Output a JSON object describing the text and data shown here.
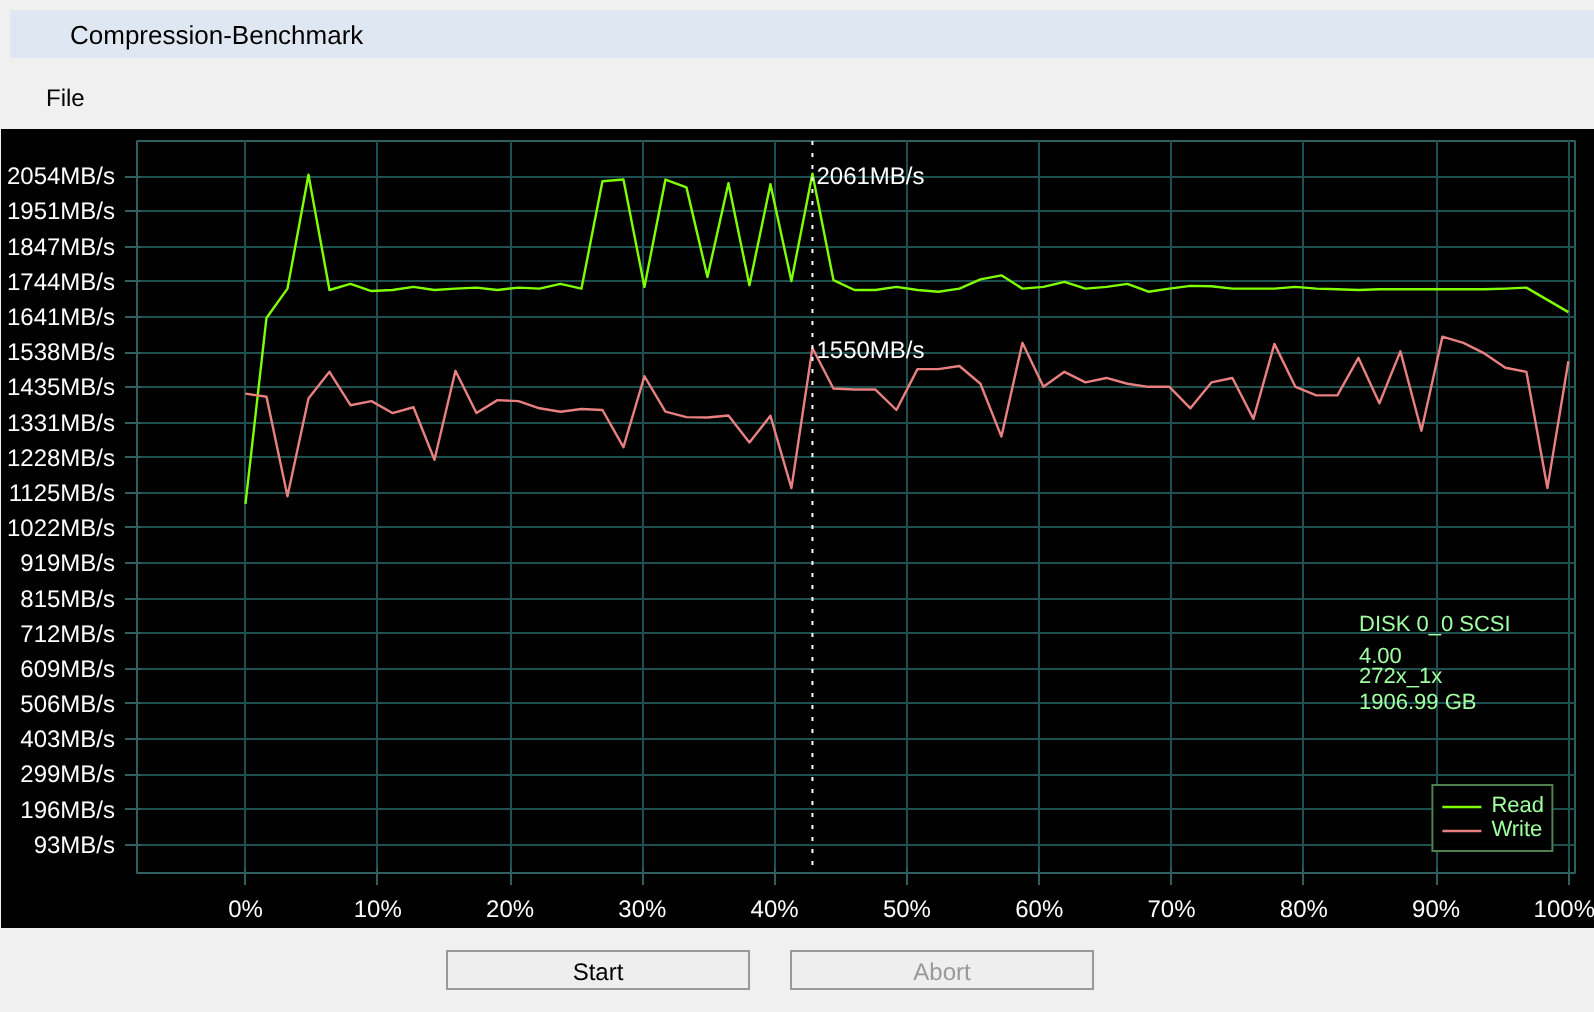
{
  "chart_data": {
    "type": "line",
    "title": "Compression-Benchmark",
    "x": [
      0,
      1.587,
      3.175,
      4.762,
      6.349,
      7.937,
      9.524,
      11.111,
      12.698,
      14.286,
      15.873,
      17.46,
      19.048,
      20.635,
      22.222,
      23.81,
      25.397,
      26.984,
      28.571,
      30.159,
      31.746,
      33.333,
      34.921,
      36.508,
      38.095,
      39.683,
      41.27,
      42.857,
      44.444,
      46.032,
      47.619,
      49.206,
      50.794,
      52.381,
      53.968,
      55.556,
      57.143,
      58.73,
      60.317,
      61.905,
      63.492,
      65.079,
      66.667,
      68.254,
      69.841,
      71.429,
      73.016,
      74.603,
      76.19,
      77.778,
      79.365,
      80.952,
      82.54,
      84.127,
      85.714,
      87.302,
      88.889,
      90.476,
      92.063,
      93.651,
      95.238,
      96.825,
      98.413,
      100
    ],
    "series": [
      {
        "name": "Read",
        "color": "#80ff00",
        "values": [
          1093,
          1638,
          1724,
          2058,
          1720,
          1738,
          1717,
          1720,
          1729,
          1720,
          1724,
          1727,
          1720,
          1727,
          1724,
          1738,
          1724,
          2039,
          2044,
          1729,
          2044,
          2021,
          1758,
          2033,
          1734,
          2030,
          1746,
          2061,
          1749,
          1720,
          1720,
          1729,
          1720,
          1715,
          1724,
          1751,
          1763,
          1724,
          1729,
          1744,
          1724,
          1729,
          1738,
          1715,
          1724,
          1732,
          1731,
          1724,
          1724,
          1724,
          1729,
          1724,
          1722,
          1720,
          1722,
          1722,
          1722,
          1722,
          1722,
          1722,
          1724,
          1727,
          1691,
          1655
        ]
      },
      {
        "name": "Write",
        "color": "#e88080",
        "values": [
          1416,
          1407,
          1115,
          1402,
          1480,
          1382,
          1394,
          1359,
          1376,
          1222,
          1483,
          1359,
          1397,
          1394,
          1373,
          1363,
          1371,
          1368,
          1259,
          1467,
          1363,
          1347,
          1346,
          1352,
          1273,
          1351,
          1139,
          1550,
          1431,
          1428,
          1428,
          1368,
          1488,
          1488,
          1497,
          1445,
          1290,
          1565,
          1436,
          1480,
          1449,
          1462,
          1445,
          1436,
          1436,
          1373,
          1449,
          1462,
          1342,
          1562,
          1436,
          1411,
          1411,
          1521,
          1388,
          1540,
          1307,
          1583,
          1565,
          1534,
          1492,
          1480,
          1139,
          1511
        ]
      }
    ],
    "xlim": [
      -8.2,
      100.5
    ],
    "ylim": [
      10,
      2157
    ],
    "xticks": [
      {
        "value": 0,
        "label": "0%"
      },
      {
        "value": 10,
        "label": "10%"
      },
      {
        "value": 20,
        "label": "20%"
      },
      {
        "value": 30,
        "label": "30%"
      },
      {
        "value": 40,
        "label": "40%"
      },
      {
        "value": 50,
        "label": "50%"
      },
      {
        "value": 60,
        "label": "60%"
      },
      {
        "value": 70,
        "label": "70%"
      },
      {
        "value": 80,
        "label": "80%"
      },
      {
        "value": 90,
        "label": "90%"
      },
      {
        "value": 100,
        "label": "100%"
      }
    ],
    "yticks": [
      {
        "value": 2054,
        "label": "2054MB/s"
      },
      {
        "value": 1951,
        "label": "1951MB/s"
      },
      {
        "value": 1847,
        "label": "1847MB/s"
      },
      {
        "value": 1744,
        "label": "1744MB/s"
      },
      {
        "value": 1641,
        "label": "1641MB/s"
      },
      {
        "value": 1538,
        "label": "1538MB/s"
      },
      {
        "value": 1435,
        "label": "1435MB/s"
      },
      {
        "value": 1331,
        "label": "1331MB/s"
      },
      {
        "value": 1228,
        "label": "1228MB/s"
      },
      {
        "value": 1125,
        "label": "1125MB/s"
      },
      {
        "value": 1022,
        "label": "1022MB/s"
      },
      {
        "value": 919,
        "label": "919MB/s"
      },
      {
        "value": 815,
        "label": "815MB/s"
      },
      {
        "value": 712,
        "label": "712MB/s"
      },
      {
        "value": 609,
        "label": "609MB/s"
      },
      {
        "value": 506,
        "label": "506MB/s"
      },
      {
        "value": 403,
        "label": "403MB/s"
      },
      {
        "value": 299,
        "label": "299MB/s"
      },
      {
        "value": 196,
        "label": "196MB/s"
      },
      {
        "value": 93,
        "label": "93MB/s"
      }
    ],
    "ref_lines": [
      {
        "axis": "x",
        "value": 42.857,
        "color": "#ffffff",
        "line_style": "dotted"
      }
    ],
    "annotations": [
      {
        "text": "2061MB/s",
        "x": 42.857,
        "y": 2061
      },
      {
        "text": "1550MB/s",
        "x": 42.857,
        "y": 1550
      },
      "DISK 0_0 SCSI",
      "4.00",
      "272x_1x",
      "1906.99 GB",
      "File",
      "Start",
      "Abort"
    ],
    "grid": true,
    "legend": "bottom right",
    "marker": "none",
    "line_style": "solid"
  }
}
